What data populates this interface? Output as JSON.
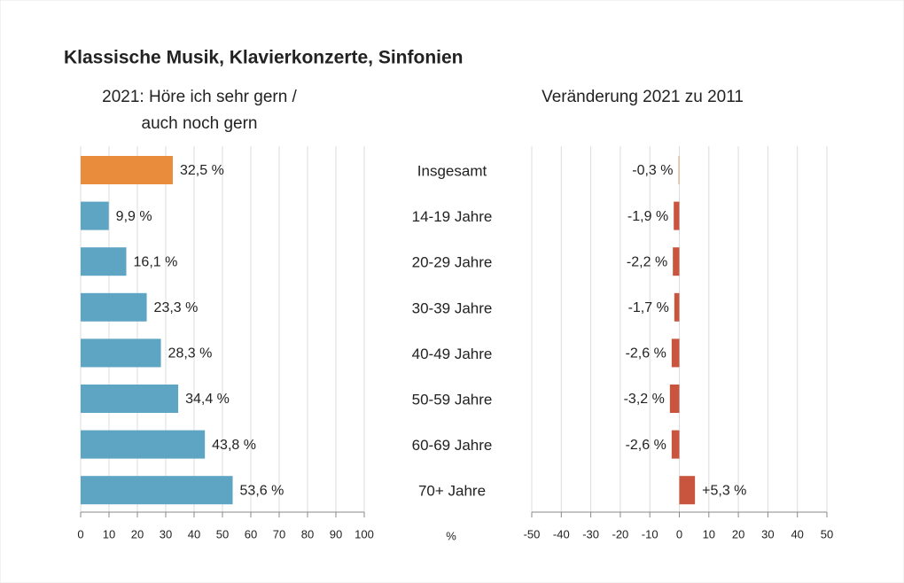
{
  "title": "Klassische Musik, Klavierkonzerte, Sinfonien",
  "categories": [
    "Insgesamt",
    "14-19 Jahre",
    "20-29 Jahre",
    "30-39 Jahre",
    "40-49 Jahre",
    "50-59 Jahre",
    "60-69 Jahre",
    "70+ Jahre"
  ],
  "x_unit": "%",
  "chart_data": [
    {
      "type": "hbar",
      "subtitle": [
        "2021: Höre ich sehr gern /",
        "auch noch gern"
      ],
      "values": [
        32.5,
        9.9,
        16.1,
        23.3,
        28.3,
        34.4,
        43.8,
        53.6
      ],
      "value_labels": [
        "32,5 %",
        "9,9 %",
        "16,1 %",
        "23,3 %",
        "28,3 %",
        "34,4 %",
        "43,8 %",
        "53,6 %"
      ],
      "colors": [
        "#e98c3b",
        "#5ea5c3",
        "#5ea5c3",
        "#5ea5c3",
        "#5ea5c3",
        "#5ea5c3",
        "#5ea5c3",
        "#5ea5c3"
      ],
      "xlim": [
        0,
        100
      ],
      "xticks": [
        0,
        10,
        20,
        30,
        40,
        50,
        60,
        70,
        80,
        90,
        100
      ],
      "grid": true
    },
    {
      "type": "hbar",
      "subtitle": [
        "Veränderung 2021 zu 2011"
      ],
      "values": [
        -0.3,
        -1.9,
        -2.2,
        -1.7,
        -2.6,
        -3.2,
        -2.6,
        5.3
      ],
      "value_labels": [
        "-0,3 %",
        "-1,9 %",
        "-2,2 %",
        "-1,7 %",
        "-2,6 %",
        "-3,2 %",
        "-2,6 %",
        "+5,3 %"
      ],
      "colors": [
        "#e8a068",
        "#c9553e",
        "#c9553e",
        "#c9553e",
        "#c9553e",
        "#c9553e",
        "#c9553e",
        "#c9553e"
      ],
      "xlim": [
        -50,
        50
      ],
      "xticks": [
        -50,
        -40,
        -30,
        -20,
        -10,
        0,
        10,
        20,
        30,
        40,
        50
      ],
      "grid": true
    }
  ]
}
